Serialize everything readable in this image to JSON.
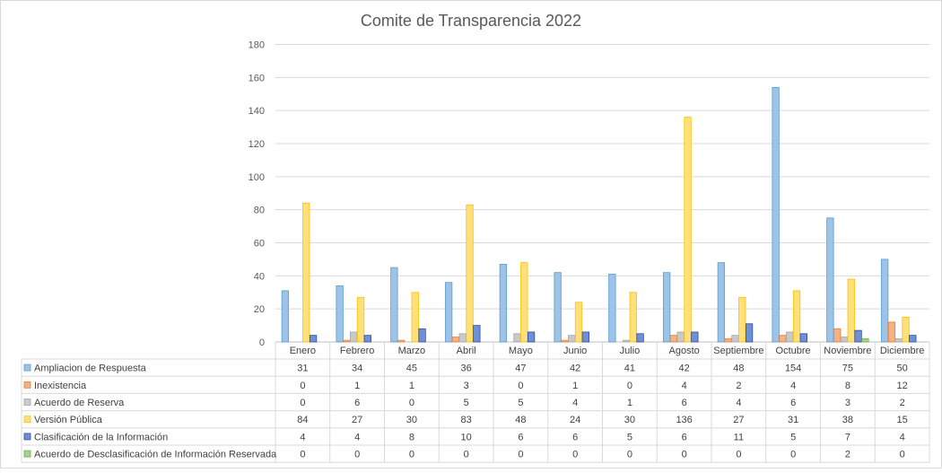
{
  "chart_data": {
    "type": "bar",
    "title": "Comite de Transparencia 2022",
    "categories": [
      "Enero",
      "Febrero",
      "Marzo",
      "Abril",
      "Mayo",
      "Junio",
      "Julio",
      "Agosto",
      "Septiembre",
      "Octubre",
      "Noviembre",
      "Diciembre"
    ],
    "ylim": [
      0,
      180
    ],
    "yticks": [
      "0",
      "20",
      "40",
      "60",
      "80",
      "100",
      "120",
      "140",
      "160",
      "180"
    ],
    "grid": true,
    "legend": "data-table",
    "series": [
      {
        "name": "Ampliacion de Respuesta",
        "color": "#9dc3e6",
        "stroke": "#5b9bd5",
        "values": [
          31,
          34,
          45,
          36,
          47,
          42,
          41,
          42,
          48,
          154,
          75,
          50
        ]
      },
      {
        "name": "Inexistencia",
        "color": "#f4b183",
        "stroke": "#ed7d31",
        "values": [
          0,
          1,
          1,
          3,
          0,
          1,
          0,
          4,
          2,
          4,
          8,
          12
        ]
      },
      {
        "name": "Acuerdo de Reserva",
        "color": "#c9c9c9",
        "stroke": "#a5a5a5",
        "values": [
          0,
          6,
          0,
          5,
          5,
          4,
          1,
          6,
          4,
          6,
          3,
          2
        ]
      },
      {
        "name": "Versión Pública",
        "color": "#ffe07a",
        "stroke": "#ffc000",
        "values": [
          84,
          27,
          30,
          83,
          48,
          24,
          30,
          136,
          27,
          31,
          38,
          15
        ]
      },
      {
        "name": "Clasificación de la Información",
        "color": "#6f8fd6",
        "stroke": "#2f4f9f",
        "values": [
          4,
          4,
          8,
          10,
          6,
          6,
          5,
          6,
          11,
          5,
          7,
          4
        ]
      },
      {
        "name": "Acuerdo de Desclasificación de Información Reservada",
        "color": "#a9d18e",
        "stroke": "#70ad47",
        "values": [
          0,
          0,
          0,
          0,
          0,
          0,
          0,
          0,
          0,
          0,
          2,
          0
        ]
      }
    ]
  }
}
